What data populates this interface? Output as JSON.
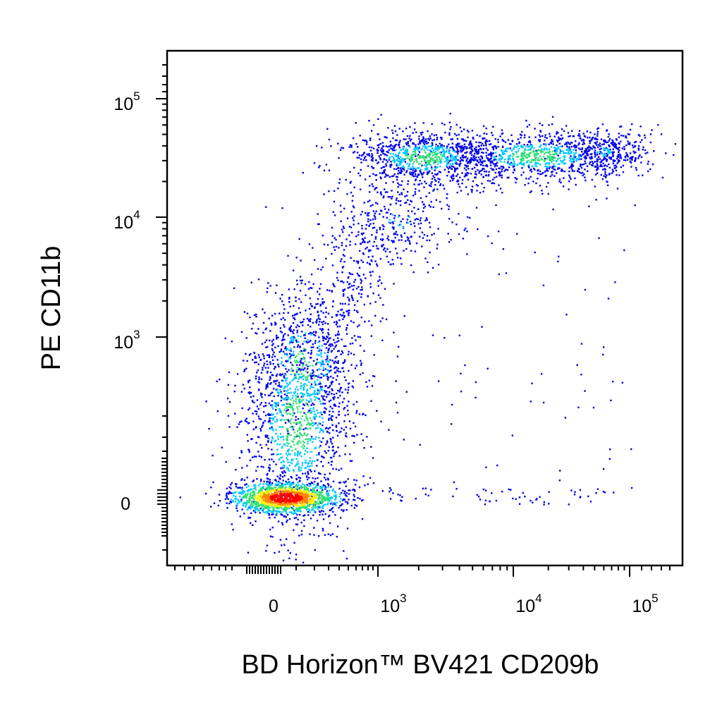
{
  "chart_data": {
    "type": "scatter",
    "style": "density pseudocolor dot plot",
    "xlabel": "BD Horizon™ BV421 CD209b",
    "ylabel": "PE CD11b",
    "x_scale": "biexponential",
    "y_scale": "biexponential",
    "xlim": [
      -300,
      200000
    ],
    "ylim": [
      -300,
      250000
    ],
    "x_ticks": [
      {
        "value": 0,
        "base": "0",
        "exp": ""
      },
      {
        "value": 1000,
        "base": "10",
        "exp": "3"
      },
      {
        "value": 10000,
        "base": "10",
        "exp": "4"
      },
      {
        "value": 100000,
        "base": "10",
        "exp": "5"
      }
    ],
    "y_ticks": [
      {
        "value": 0,
        "base": "0",
        "exp": ""
      },
      {
        "value": 1000,
        "base": "10",
        "exp": "3"
      },
      {
        "value": 10000,
        "base": "10",
        "exp": "4"
      },
      {
        "value": 100000,
        "base": "10",
        "exp": "5"
      }
    ],
    "density_colors": [
      "#0000e6",
      "#00c8ff",
      "#30e070",
      "#fff000",
      "#ff8000",
      "#ff0000"
    ],
    "grid": false,
    "legend": "none",
    "populations": [
      {
        "label": "",
        "x_center": 20,
        "y_center": 0,
        "share": 0.45,
        "note": "dense core near origin"
      },
      {
        "label": "",
        "x_center": 150,
        "y_center": 300,
        "share": 0.25,
        "note": "vertical spread up to ~10^3"
      },
      {
        "label": "",
        "x_center": 8000,
        "y_center": 30000,
        "share": 0.22,
        "note": "CD11b-high band spanning 10^3 to 10^5"
      },
      {
        "label": "",
        "x_center": 800,
        "y_center": 5000,
        "share": 0.06,
        "note": "transition between populations"
      },
      {
        "label": "",
        "x_center": 10000,
        "y_center": 500,
        "share": 0.02,
        "note": "scattered events"
      }
    ]
  }
}
